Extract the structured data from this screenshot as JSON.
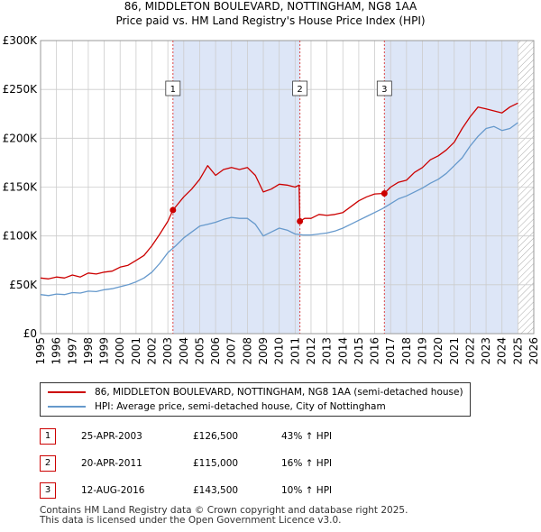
{
  "title_line1": "86, MIDDLETON BOULEVARD, NOTTINGHAM, NG8 1AA",
  "title_line2": "Price paid vs. HM Land Registry's House Price Index (HPI)",
  "colors": {
    "property_line": "#cc0000",
    "hpi_line": "#6699cc",
    "shade": "#dde6f7",
    "vline": "#dd4444",
    "grid": "#cccccc"
  },
  "legend": {
    "property": "86, MIDDLETON BOULEVARD, NOTTINGHAM, NG8 1AA (semi-detached house)",
    "hpi": "HPI: Average price, semi-detached house, City of Nottingham"
  },
  "sales": [
    {
      "num": "1",
      "date": "25-APR-2003",
      "price": "£126,500",
      "hpi": "43% ↑ HPI"
    },
    {
      "num": "2",
      "date": "20-APR-2011",
      "price": "£115,000",
      "hpi": "16% ↑ HPI"
    },
    {
      "num": "3",
      "date": "12-AUG-2016",
      "price": "£143,500",
      "hpi": "10% ↑ HPI"
    }
  ],
  "footer": {
    "line1": "Contains HM Land Registry data © Crown copyright and database right 2025.",
    "line2": "This data is licensed under the Open Government Licence v3.0."
  },
  "chart_data": {
    "type": "line",
    "xlim": [
      1995,
      2026
    ],
    "ylim": [
      0,
      300000
    ],
    "y_ticks": [
      {
        "value": 0,
        "label": "£0"
      },
      {
        "value": 50000,
        "label": "£50K"
      },
      {
        "value": 100000,
        "label": "£100K"
      },
      {
        "value": 150000,
        "label": "£150K"
      },
      {
        "value": 200000,
        "label": "£200K"
      },
      {
        "value": 250000,
        "label": "£250K"
      },
      {
        "value": 300000,
        "label": "£300K"
      }
    ],
    "x_ticks": [
      "1995",
      "1996",
      "1997",
      "1998",
      "1999",
      "2000",
      "2001",
      "2002",
      "2003",
      "2004",
      "2005",
      "2006",
      "2007",
      "2008",
      "2009",
      "2010",
      "2011",
      "2012",
      "2013",
      "2014",
      "2015",
      "2016",
      "2017",
      "2018",
      "2019",
      "2020",
      "2021",
      "2022",
      "2023",
      "2024",
      "2025",
      "2026"
    ],
    "shaded_ranges": [
      {
        "from": 2003.32,
        "to": 2011.3
      },
      {
        "from": 2016.61,
        "to": 2025.0
      }
    ],
    "hatched_from": 2025.0,
    "sale_markers": [
      {
        "label": "1",
        "x": 2003.32,
        "y": 126500
      },
      {
        "label": "2",
        "x": 2011.3,
        "y": 115000
      },
      {
        "label": "3",
        "x": 2016.61,
        "y": 143500
      }
    ],
    "series": [
      {
        "name": "86, MIDDLETON BOULEVARD, NOTTINGHAM, NG8 1AA (semi-detached house)",
        "x": [
          1995.0,
          1995.5,
          1996.0,
          1996.5,
          1997.0,
          1997.5,
          1998.0,
          1998.5,
          1999.0,
          1999.5,
          2000.0,
          2000.5,
          2001.0,
          2001.5,
          2002.0,
          2002.5,
          2003.0,
          2003.32,
          2003.6,
          2004.0,
          2004.5,
          2005.0,
          2005.5,
          2006.0,
          2006.5,
          2007.0,
          2007.5,
          2008.0,
          2008.5,
          2009.0,
          2009.5,
          2010.0,
          2010.5,
          2011.0,
          2011.25,
          2011.3,
          2011.6,
          2012.0,
          2012.5,
          2013.0,
          2013.5,
          2014.0,
          2014.5,
          2015.0,
          2015.5,
          2016.0,
          2016.61,
          2017.0,
          2017.5,
          2018.0,
          2018.5,
          2019.0,
          2019.5,
          2020.0,
          2020.5,
          2021.0,
          2021.5,
          2022.0,
          2022.5,
          2023.0,
          2023.5,
          2024.0,
          2024.5,
          2025.0
        ],
        "y": [
          57000,
          56000,
          58000,
          57000,
          60000,
          58000,
          62000,
          61000,
          63000,
          64000,
          68000,
          70000,
          75000,
          80000,
          90000,
          102000,
          115000,
          126500,
          132000,
          140000,
          148000,
          158000,
          172000,
          162000,
          168000,
          170000,
          168000,
          170000,
          162000,
          145000,
          148000,
          153000,
          152000,
          150000,
          152000,
          115000,
          118000,
          118000,
          122000,
          121000,
          122000,
          124000,
          130000,
          136000,
          140000,
          143000,
          143500,
          150000,
          155000,
          157000,
          165000,
          170000,
          178000,
          182000,
          188000,
          196000,
          210000,
          222000,
          232000,
          230000,
          228000,
          226000,
          232000,
          236000
        ]
      },
      {
        "name": "HPI: Average price, semi-detached house, City of Nottingham",
        "x": [
          1995.0,
          1995.5,
          1996.0,
          1996.5,
          1997.0,
          1997.5,
          1998.0,
          1998.5,
          1999.0,
          1999.5,
          2000.0,
          2000.5,
          2001.0,
          2001.5,
          2002.0,
          2002.5,
          2003.0,
          2003.5,
          2004.0,
          2004.5,
          2005.0,
          2005.5,
          2006.0,
          2006.5,
          2007.0,
          2007.5,
          2008.0,
          2008.5,
          2009.0,
          2009.5,
          2010.0,
          2010.5,
          2011.0,
          2011.5,
          2012.0,
          2012.5,
          2013.0,
          2013.5,
          2014.0,
          2014.5,
          2015.0,
          2015.5,
          2016.0,
          2016.5,
          2017.0,
          2017.5,
          2018.0,
          2018.5,
          2019.0,
          2019.5,
          2020.0,
          2020.5,
          2021.0,
          2021.5,
          2022.0,
          2022.5,
          2023.0,
          2023.5,
          2024.0,
          2024.5,
          2025.0
        ],
        "y": [
          40000,
          39000,
          40500,
          40000,
          42000,
          41500,
          43500,
          43000,
          45000,
          46000,
          48000,
          50000,
          53000,
          57000,
          63000,
          72000,
          83000,
          90000,
          98000,
          104000,
          110000,
          112000,
          114000,
          117000,
          119000,
          118000,
          118000,
          112000,
          100000,
          104000,
          108000,
          106000,
          102000,
          101000,
          101000,
          102000,
          103000,
          105000,
          108000,
          112000,
          116000,
          120000,
          124000,
          128000,
          133000,
          138000,
          141000,
          145000,
          149000,
          154000,
          158000,
          164000,
          172000,
          180000,
          192000,
          202000,
          210000,
          212000,
          208000,
          210000,
          216000
        ]
      }
    ]
  }
}
